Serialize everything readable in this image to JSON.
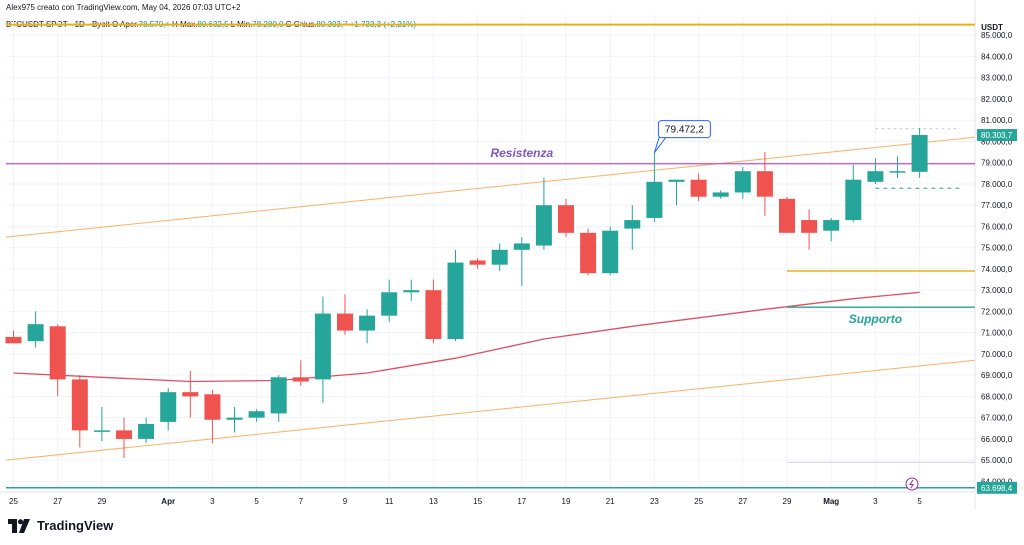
{
  "header": {
    "text": "Alex975 creato con TradingView.com, May 04, 2026 07:03 UTC+2"
  },
  "ohlc": {
    "symbol": "BTCUSDT SPOT · 1D · Bybit",
    "o_label": "O",
    "o_name": "Aper.",
    "o_value": "78.570,4",
    "h_label": "H",
    "h_name": "Max.",
    "h_value": "80.632,5",
    "l_label": "L",
    "l_name": "Min.",
    "l_value": "78.280,0",
    "c_label": "C",
    "c_name": "Chius.",
    "c_value": "80.303,7",
    "change": "+1.733,3 (+2,21%)"
  },
  "logo": {
    "text": "TradingView"
  },
  "colors": {
    "up": "#26a69a",
    "down": "#ef5350",
    "resistance": "#c050c8",
    "support": "#26a69a",
    "trend": "#f7b267",
    "ma": "#e05060",
    "gold": "#e8b019"
  },
  "chart_data": {
    "type": "candlestick",
    "currency": "USDT",
    "ylim": [
      63500,
      86000
    ],
    "yticks": [
      "85.000,0",
      "84.000,0",
      "83.000,0",
      "82.000,0",
      "81.000,0",
      "80.000,0",
      "79.000,0",
      "78.000,0",
      "77.000,0",
      "76.000,0",
      "75.000,0",
      "74.000,0",
      "73.000,0",
      "72.000,0",
      "71.000,0",
      "70.000,0",
      "69.000,0",
      "68.000,0",
      "67.000,0",
      "66.000,0",
      "65.000,0",
      "64.000,0"
    ],
    "yticks_values": [
      85000,
      84000,
      83000,
      82000,
      81000,
      80000,
      79000,
      78000,
      77000,
      76000,
      75000,
      74000,
      73000,
      72000,
      71000,
      70000,
      69000,
      68000,
      67000,
      66000,
      65000,
      64000
    ],
    "xticks": [
      {
        "label": "25",
        "day": 0
      },
      {
        "label": "27",
        "day": 2
      },
      {
        "label": "29",
        "day": 4
      },
      {
        "label": "Apr",
        "day": 7
      },
      {
        "label": "3",
        "day": 9
      },
      {
        "label": "5",
        "day": 11
      },
      {
        "label": "7",
        "day": 13
      },
      {
        "label": "9",
        "day": 15
      },
      {
        "label": "11",
        "day": 17
      },
      {
        "label": "13",
        "day": 19
      },
      {
        "label": "15",
        "day": 21
      },
      {
        "label": "17",
        "day": 23
      },
      {
        "label": "19",
        "day": 25
      },
      {
        "label": "21",
        "day": 27
      },
      {
        "label": "23",
        "day": 29
      },
      {
        "label": "25",
        "day": 31
      },
      {
        "label": "27",
        "day": 33
      },
      {
        "label": "29",
        "day": 35
      },
      {
        "label": "Mag",
        "day": 37
      },
      {
        "label": "3",
        "day": 39
      },
      {
        "label": "5",
        "day": 41
      }
    ],
    "candles": [
      {
        "o": 70800,
        "h": 71100,
        "l": 70500,
        "c": 70500
      },
      {
        "o": 70600,
        "h": 72000,
        "l": 70300,
        "c": 71400
      },
      {
        "o": 71300,
        "h": 71400,
        "l": 68000,
        "c": 68800
      },
      {
        "o": 68800,
        "h": 69000,
        "l": 65600,
        "c": 66400
      },
      {
        "o": 66400,
        "h": 67500,
        "l": 65900,
        "c": 66400
      },
      {
        "o": 66400,
        "h": 67000,
        "l": 65100,
        "c": 66000
      },
      {
        "o": 66000,
        "h": 67000,
        "l": 65800,
        "c": 66700
      },
      {
        "o": 66800,
        "h": 68400,
        "l": 66400,
        "c": 68200
      },
      {
        "o": 68200,
        "h": 69200,
        "l": 67000,
        "c": 68000
      },
      {
        "o": 68100,
        "h": 68300,
        "l": 65800,
        "c": 66900
      },
      {
        "o": 66900,
        "h": 67500,
        "l": 66300,
        "c": 67000
      },
      {
        "o": 67000,
        "h": 67400,
        "l": 66800,
        "c": 67300
      },
      {
        "o": 67200,
        "h": 69000,
        "l": 66800,
        "c": 68900
      },
      {
        "o": 68900,
        "h": 69700,
        "l": 68500,
        "c": 68700
      },
      {
        "o": 68800,
        "h": 72700,
        "l": 67700,
        "c": 71900
      },
      {
        "o": 71900,
        "h": 72800,
        "l": 70900,
        "c": 71100
      },
      {
        "o": 71100,
        "h": 72100,
        "l": 70500,
        "c": 71800
      },
      {
        "o": 71800,
        "h": 73500,
        "l": 71500,
        "c": 72900
      },
      {
        "o": 72900,
        "h": 73500,
        "l": 72500,
        "c": 73000
      },
      {
        "o": 73000,
        "h": 73500,
        "l": 70500,
        "c": 70700
      },
      {
        "o": 70700,
        "h": 74900,
        "l": 70600,
        "c": 74300
      },
      {
        "o": 74400,
        "h": 74500,
        "l": 74000,
        "c": 74200
      },
      {
        "o": 74200,
        "h": 75200,
        "l": 73900,
        "c": 74900
      },
      {
        "o": 74900,
        "h": 75500,
        "l": 73200,
        "c": 75200
      },
      {
        "o": 75100,
        "h": 78300,
        "l": 74900,
        "c": 77000
      },
      {
        "o": 77000,
        "h": 77300,
        "l": 75500,
        "c": 75700
      },
      {
        "o": 75700,
        "h": 75900,
        "l": 73700,
        "c": 73800
      },
      {
        "o": 73800,
        "h": 76000,
        "l": 73700,
        "c": 75800
      },
      {
        "o": 75900,
        "h": 77000,
        "l": 74900,
        "c": 76300
      },
      {
        "o": 76400,
        "h": 79472,
        "l": 76200,
        "c": 78100
      },
      {
        "o": 78100,
        "h": 78200,
        "l": 77000,
        "c": 78200
      },
      {
        "o": 78200,
        "h": 78500,
        "l": 77200,
        "c": 77400
      },
      {
        "o": 77400,
        "h": 77700,
        "l": 77300,
        "c": 77600
      },
      {
        "o": 77600,
        "h": 78800,
        "l": 77300,
        "c": 78600
      },
      {
        "o": 78600,
        "h": 79500,
        "l": 76500,
        "c": 77400
      },
      {
        "o": 77300,
        "h": 77400,
        "l": 75700,
        "c": 75700
      },
      {
        "o": 76300,
        "h": 76800,
        "l": 74900,
        "c": 75700
      },
      {
        "o": 75800,
        "h": 76400,
        "l": 75300,
        "c": 76300
      },
      {
        "o": 76300,
        "h": 78900,
        "l": 76200,
        "c": 78200
      },
      {
        "o": 78100,
        "h": 79200,
        "l": 78000,
        "c": 78600
      },
      {
        "o": 78570.4,
        "h": 79300,
        "l": 78280,
        "c": 78600
      },
      {
        "o": 78570.4,
        "h": 80632.5,
        "l": 78280,
        "c": 80303.7
      }
    ],
    "ma": [
      [
        0,
        69100
      ],
      [
        4,
        68900
      ],
      [
        8,
        68700
      ],
      [
        12,
        68750
      ],
      [
        16,
        69100
      ],
      [
        20,
        69800
      ],
      [
        24,
        70700
      ],
      [
        28,
        71300
      ],
      [
        31,
        71700
      ],
      [
        34,
        72100
      ],
      [
        38,
        72600
      ],
      [
        41,
        72900
      ]
    ],
    "trend_upper": [
      [
        0,
        75500
      ],
      [
        42,
        80200
      ]
    ],
    "trend_lower": [
      [
        0,
        65000
      ],
      [
        42,
        69700
      ]
    ],
    "resistance": {
      "label": "Resistenza",
      "value": 78950
    },
    "support": {
      "label": "Supporto",
      "value": 72200
    },
    "level_top": 85500,
    "level_bottom": 63698.4,
    "level_bottom_label": "63.698,4",
    "price_label": "80.303,7",
    "dashed_level": 77800,
    "gray_level": 80600,
    "gray_level2": 64900,
    "gold_short": 73900,
    "callout": {
      "label": "79.472,2",
      "day": 29,
      "value": 79472.2
    }
  }
}
